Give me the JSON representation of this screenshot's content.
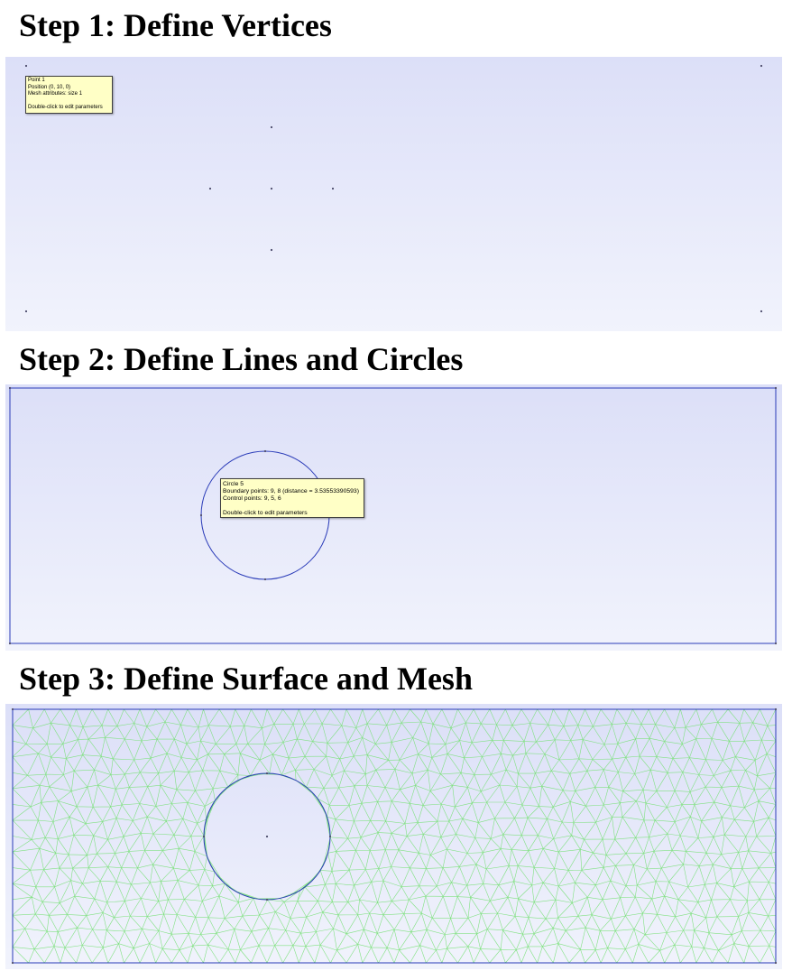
{
  "steps": [
    {
      "title": "Step 1: Define Vertices",
      "tooltip": {
        "line1": "Point 1",
        "line2": "Position (0, 10, 0)",
        "line3": "Mesh attributes: size 1",
        "hint": "Double-click to edit parameters"
      }
    },
    {
      "title": "Step 2: Define Lines and Circles",
      "tooltip": {
        "line1": "Circle 5",
        "line2": "Boundary points: 9, 8 (distance = 3.53553390593)",
        "line3": "Control points: 9, 5, 6",
        "hint": "Double-click to edit parameters"
      }
    },
    {
      "title": "Step 3: Define Surface and Mesh"
    }
  ],
  "colors": {
    "canvas_top": "#dcdff8",
    "canvas_bottom": "#f1f3fc",
    "geometry": "#2a3bb8",
    "point": "#4a4a6a",
    "mesh": "#7be07b",
    "tooltip_bg": "#ffffc6"
  }
}
